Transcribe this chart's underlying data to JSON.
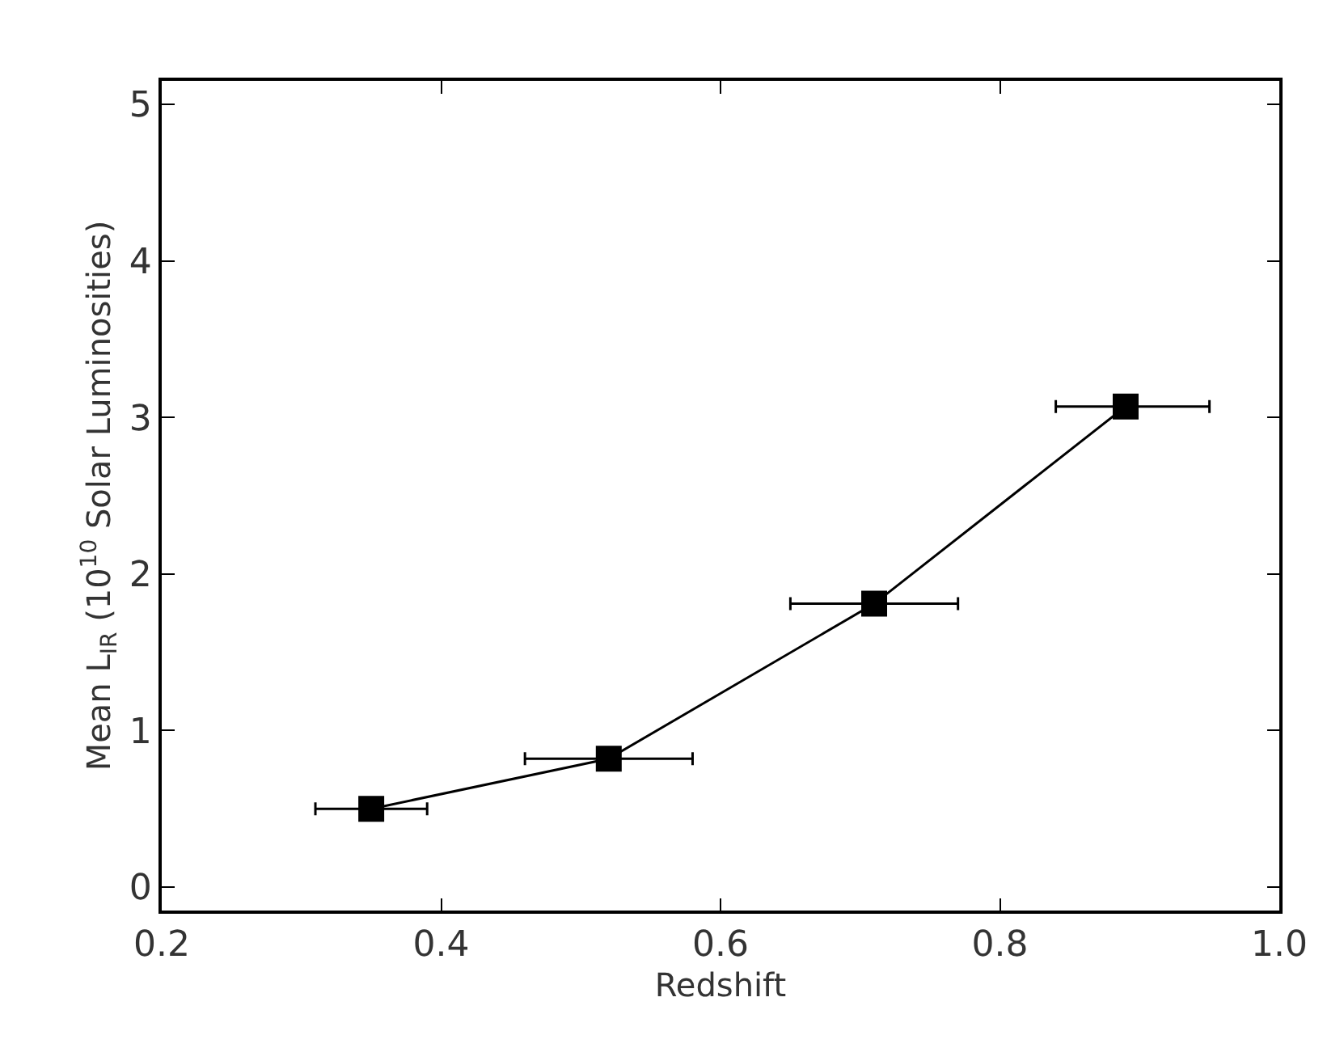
{
  "chart_data": {
    "type": "line",
    "xlabel": "Redshift",
    "ylabel": "Mean L$_{IR}$ (10$^{10}$ Solar Luminosities)",
    "x": [
      0.35,
      0.52,
      0.71,
      0.89
    ],
    "series": [
      {
        "color": "#000000",
        "values": [
          0.5,
          0.82,
          1.81,
          3.07
        ],
        "xerrors": [
          [
            0.31,
            0.39
          ],
          [
            0.46,
            0.58
          ],
          [
            0.65,
            0.77
          ],
          [
            0.84,
            0.95
          ]
        ]
      }
    ],
    "xlim": [
      0.2,
      1.0
    ],
    "xticks": [
      0.2,
      0.4,
      0.6,
      0.8,
      {
        "value": 1.0,
        "label": "1.0"
      }
    ],
    "ylim": [
      -0.15,
      5.15
    ],
    "yticks": [
      0,
      1,
      2,
      3,
      4,
      5
    ],
    "marker": "square",
    "line_style": "solid",
    "legend": false
  }
}
